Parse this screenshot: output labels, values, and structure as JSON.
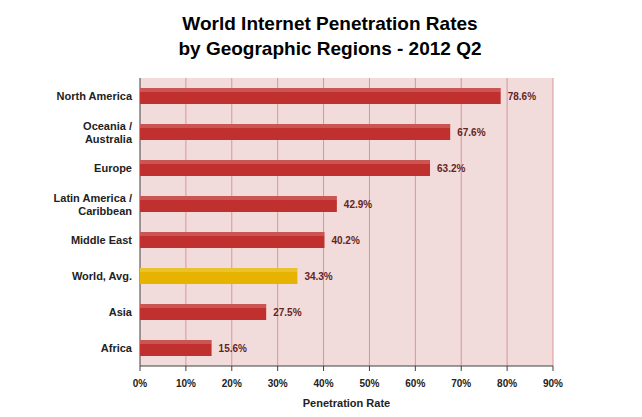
{
  "chart_data": {
    "type": "bar",
    "orientation": "horizontal",
    "title": "World Internet Penetration Rates",
    "subtitle": "by Geographic Regions - 2012 Q2",
    "xlabel": "Penetration Rate",
    "categories": [
      "North America",
      "Oceania  /\nAustralia",
      "Europe",
      "Latin America /\nCaribbean",
      "Middle East",
      "World, Avg.",
      "Asia",
      "Africa"
    ],
    "values": [
      78.6,
      67.6,
      63.2,
      42.9,
      40.2,
      34.3,
      27.5,
      15.6
    ],
    "value_labels": [
      "78.6%",
      "67.6%",
      "63.2%",
      "42.9%",
      "40.2%",
      "34.3%",
      "27.5%",
      "15.6%"
    ],
    "colors": [
      "#c0302e",
      "#c0302e",
      "#c0302e",
      "#c0302e",
      "#c0302e",
      "#e6b400",
      "#c0302e",
      "#c0302e"
    ],
    "xlim": [
      0,
      90
    ],
    "xticks": [
      {
        "value": 0,
        "label": "0%"
      },
      {
        "value": 10,
        "label": "10%"
      },
      {
        "value": 20,
        "label": "20%"
      },
      {
        "value": 30,
        "label": "30%"
      },
      {
        "value": 40,
        "label": "40%"
      },
      {
        "value": 50,
        "label": "50%"
      },
      {
        "value": 60,
        "label": "60%"
      },
      {
        "value": 70,
        "label": "70%"
      },
      {
        "value": 80,
        "label": "80%"
      },
      {
        "value": 90,
        "label": "90%"
      }
    ],
    "grid": true,
    "data_labels": true
  }
}
